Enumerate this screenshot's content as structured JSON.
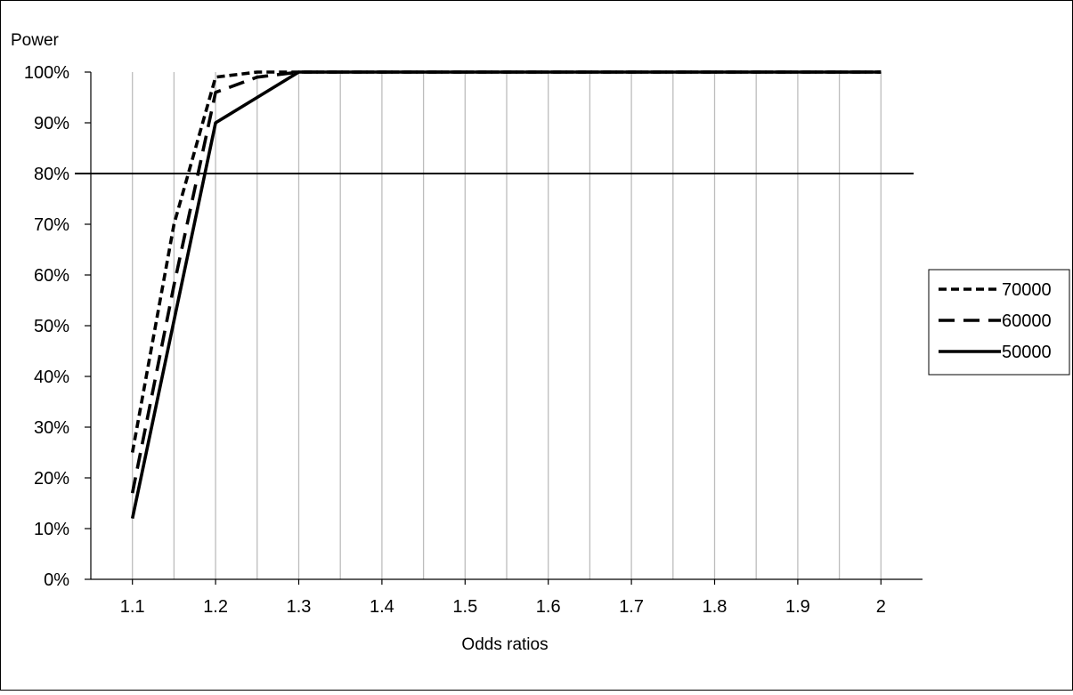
{
  "chart_data": {
    "type": "line",
    "title": "",
    "ylabel": "Power",
    "xlabel": "Odds ratios",
    "x": [
      1.1,
      1.15,
      1.2,
      1.25,
      1.3,
      1.35,
      1.4,
      1.45,
      1.5,
      1.55,
      1.6,
      1.65,
      1.7,
      1.75,
      1.8,
      1.85,
      1.9,
      1.95,
      2
    ],
    "x_tick_labels": [
      "1.1",
      "1.2",
      "1.3",
      "1.4",
      "1.5",
      "1.6",
      "1.7",
      "1.8",
      "1.9",
      "2"
    ],
    "y_tick_labels": [
      "0%",
      "10%",
      "20%",
      "30%",
      "40%",
      "50%",
      "60%",
      "70%",
      "80%",
      "90%",
      "100%"
    ],
    "ylim": [
      0,
      100
    ],
    "grid": "vertical",
    "reference_line": 80,
    "legend_position": "right",
    "series": [
      {
        "name": "70000",
        "style": "short-dash",
        "values": [
          25,
          70,
          99,
          100,
          100,
          100,
          100,
          100,
          100,
          100,
          100,
          100,
          100,
          100,
          100,
          100,
          100,
          100,
          100
        ]
      },
      {
        "name": "60000",
        "style": "long-dash",
        "values": [
          17,
          58,
          96,
          99,
          100,
          100,
          100,
          100,
          100,
          100,
          100,
          100,
          100,
          100,
          100,
          100,
          100,
          100,
          100
        ]
      },
      {
        "name": "50000",
        "style": "solid",
        "values": [
          12,
          51,
          90,
          95,
          100,
          100,
          100,
          100,
          100,
          100,
          100,
          100,
          100,
          100,
          100,
          100,
          100,
          100,
          100
        ]
      }
    ]
  }
}
